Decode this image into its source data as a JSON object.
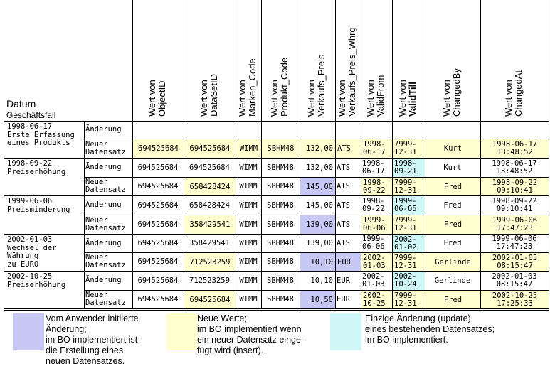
{
  "header": {
    "datum": "Datum",
    "geschaeftsfall": "Geschäftsfall",
    "columns": [
      {
        "l1": "Wert von",
        "l2": "ObjectID"
      },
      {
        "l1": "Wert von",
        "l2": "DataSetID"
      },
      {
        "l1": "Wert von",
        "l2": "Marken_Code"
      },
      {
        "l1": "Wert von",
        "l2": "Produkt_Code"
      },
      {
        "l1": "Wert von",
        "l2": "Verkaufs_Preis"
      },
      {
        "l1": "Wert von",
        "l2": "Verkaufs_Preis_Whrg"
      },
      {
        "l1": "Wert von",
        "l2": "ValidFrom"
      },
      {
        "l1": "Wert von",
        "l2": "ValidTill"
      },
      {
        "l1": "Wert von",
        "l2": "ChangedBy"
      },
      {
        "l1": "Wert von",
        "l2": "ChangedAt"
      }
    ]
  },
  "groups": [
    {
      "date": "1998-06-17",
      "desc": [
        "Erste Erfassung",
        "eines Produkts"
      ]
    },
    {
      "date": "1998-09-22",
      "desc": [
        "Preiserhöhung"
      ]
    },
    {
      "date": "1999-06-06",
      "desc": [
        "Preisminderung"
      ]
    },
    {
      "date": "2002-01-03",
      "desc": [
        "Wechsel der",
        "Währung",
        "zu EURO"
      ]
    },
    {
      "date": "2002-10-25",
      "desc": [
        "Preiserhöhung"
      ]
    }
  ],
  "rows": [
    {
      "type": [
        "Änderung"
      ],
      "cells": [
        "",
        "",
        "",
        "",
        "",
        "",
        "",
        "",
        "",
        ""
      ]
    },
    {
      "type": [
        "Neuer",
        "Datensatz"
      ],
      "cells": [
        "694525684",
        "694525684",
        "WIMM",
        "SBHM48",
        "132,00",
        "ATS",
        "1998-|06-17",
        "7999-|12-31",
        "Kurt",
        "1998-06-17|13:48:52"
      ]
    },
    {
      "type": [
        "Änderung"
      ],
      "cells": [
        "694525684",
        "694525684",
        "WIMM",
        "SBHM48",
        "132,00",
        "ATS",
        "1998-|06-17",
        "1998-|09-21",
        "Kurt",
        "1998-06-17|13:48:52"
      ]
    },
    {
      "type": [
        "Neuer",
        "Datensatz"
      ],
      "cells": [
        "694525684",
        "658428424",
        "WIMM",
        "SBHM48",
        "145,00",
        "ATS",
        "1998-|09-22",
        "7999-|12-31",
        "Fred",
        "1998-09-22|09:10:41"
      ]
    },
    {
      "type": [
        "Änderung"
      ],
      "cells": [
        "694525684",
        "658428424",
        "WIMM",
        "SBHM48",
        "145,00",
        "ATS",
        "1998-|09-22",
        "1999-|06-05",
        "Fred",
        "1998-09-22|09:10:41"
      ]
    },
    {
      "type": [
        "Neuer",
        "Datensatz"
      ],
      "cells": [
        "694525684",
        "358429541",
        "WIMM",
        "SBHM48",
        "139,00",
        "ATS",
        "1999-|06-06",
        "7999-|12-31",
        "Fred",
        "1999-06-06|17:47:23"
      ]
    },
    {
      "type": [
        "Änderung"
      ],
      "cells": [
        "694525684",
        "358429541",
        "WIMM",
        "SBHM48",
        "139,00",
        "ATS",
        "1999-|06-06",
        "2002-|01-02",
        "Fred",
        "1999-06-06|17:47:23"
      ]
    },
    {
      "type": [
        "Neuer",
        "Datensatz"
      ],
      "cells": [
        "694525684",
        "712523259",
        "WIMM",
        "SBHM48",
        "10,10",
        "EUR",
        "2002-|01-03",
        "7999-|12-31",
        "Gerlinde",
        "2002-01-03|08:15:47"
      ]
    },
    {
      "type": [
        "Änderung"
      ],
      "cells": [
        "694525684",
        "712523259",
        "WIMM",
        "SBHM48",
        "10,10",
        "EUR",
        "2002-|01-03",
        "2002-|10-24",
        "Gerlinde",
        "2002-01-03|08:15:47"
      ]
    },
    {
      "type": [
        "Neuer",
        "Datensatz"
      ],
      "cells": [
        "694525684",
        "694525684",
        "WIMM",
        "SBHM48",
        "10,50",
        "EUR",
        "2002-|10-25",
        "7999-|12-31",
        "Fred",
        "2002-10-25|17:25:33"
      ]
    }
  ],
  "colors": {
    "user_change": "#c8c8f5",
    "new_values": "#ffffd0",
    "update_only": "#d0f8f8"
  },
  "legend": [
    {
      "color": "#c8c8f5",
      "text": "Vom Anwender initiierte\nÄnderung;\nim BO implementiert ist\ndie Erstellung eines\nneuen Datensatzes."
    },
    {
      "color": "#ffffd0",
      "text": "Neue Werte;\nim BO implementiert wenn\nein neuer Datensatz einge-\nfügt wird (insert)."
    },
    {
      "color": "#d0f8f8",
      "text": "Einzige Änderung (update)\neines bestehenden Datensatzes;\nim BO implementiert."
    }
  ]
}
